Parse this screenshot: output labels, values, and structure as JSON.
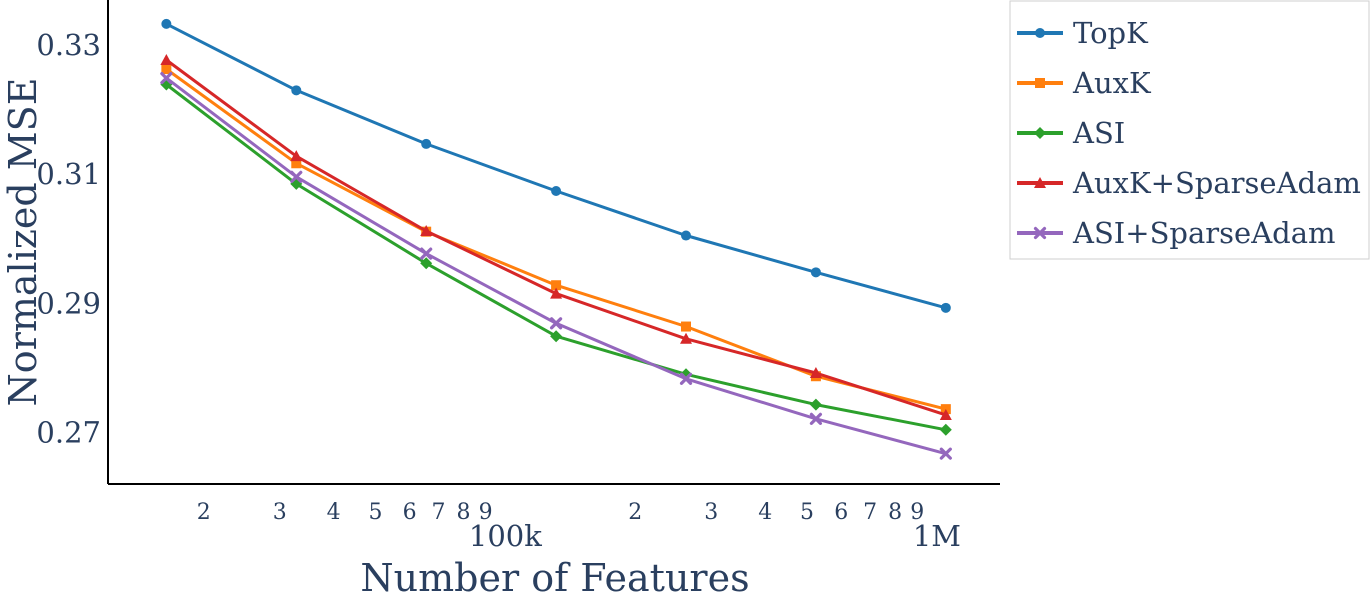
{
  "chart_data": {
    "type": "line",
    "xlabel": "Number of Features",
    "ylabel": "Normalized MSE",
    "x_scale": "log",
    "xlim": [
      12000,
      1400000
    ],
    "ylim": [
      0.262,
      0.337
    ],
    "x": [
      16384,
      32768,
      65536,
      131072,
      262144,
      524288,
      1048576
    ],
    "x_ticks": [
      {
        "value": 20000,
        "label": "2",
        "major": false
      },
      {
        "value": 30000,
        "label": "3",
        "major": false
      },
      {
        "value": 40000,
        "label": "4",
        "major": false
      },
      {
        "value": 50000,
        "label": "5",
        "major": false
      },
      {
        "value": 60000,
        "label": "6",
        "major": false
      },
      {
        "value": 70000,
        "label": "7",
        "major": false
      },
      {
        "value": 80000,
        "label": "8",
        "major": false
      },
      {
        "value": 90000,
        "label": "9",
        "major": false
      },
      {
        "value": 100000,
        "label": "100k",
        "major": true
      },
      {
        "value": 200000,
        "label": "2",
        "major": false
      },
      {
        "value": 300000,
        "label": "3",
        "major": false
      },
      {
        "value": 400000,
        "label": "4",
        "major": false
      },
      {
        "value": 500000,
        "label": "5",
        "major": false
      },
      {
        "value": 600000,
        "label": "6",
        "major": false
      },
      {
        "value": 700000,
        "label": "7",
        "major": false
      },
      {
        "value": 800000,
        "label": "8",
        "major": false
      },
      {
        "value": 900000,
        "label": "9",
        "major": false
      },
      {
        "value": 1000000,
        "label": "1M",
        "major": true
      }
    ],
    "y_ticks": [
      {
        "value": 0.27,
        "label": "0.27"
      },
      {
        "value": 0.29,
        "label": "0.29"
      },
      {
        "value": 0.31,
        "label": "0.31"
      },
      {
        "value": 0.33,
        "label": "0.33"
      }
    ],
    "grid": false,
    "legend_position": "top-right outside",
    "series": [
      {
        "name": "TopK",
        "color": "#1f77b4",
        "marker": "circle",
        "values": [
          0.3333,
          0.323,
          0.3147,
          0.3074,
          0.3005,
          0.2948,
          0.2893
        ]
      },
      {
        "name": "AuxK",
        "color": "#ff7f0e",
        "marker": "square",
        "values": [
          0.3263,
          0.3117,
          0.3011,
          0.2928,
          0.2864,
          0.2787,
          0.2736
        ]
      },
      {
        "name": "ASI",
        "color": "#2ca02c",
        "marker": "diamond",
        "values": [
          0.3239,
          0.3085,
          0.2962,
          0.2849,
          0.279,
          0.2743,
          0.2704
        ]
      },
      {
        "name": "AuxK+SparseAdam",
        "color": "#d62728",
        "marker": "triangle",
        "values": [
          0.3277,
          0.3128,
          0.3012,
          0.2915,
          0.2845,
          0.2792,
          0.2727
        ]
      },
      {
        "name": "ASI+SparseAdam",
        "color": "#9467bd",
        "marker": "x",
        "values": [
          0.3249,
          0.3096,
          0.2977,
          0.2869,
          0.2783,
          0.2721,
          0.2667
        ]
      }
    ]
  }
}
